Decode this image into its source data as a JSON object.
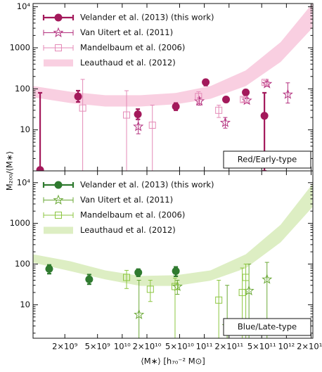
{
  "chart_data": [
    {
      "type": "scatter",
      "ylabel": "M₂₀₀/⟨M∗⟩",
      "panel_label": "Red/Early-type",
      "xlog": true,
      "ylog": true,
      "xlim": [
        820000000.0,
        2100000000000.0
      ],
      "ylim": [
        1,
        12000
      ],
      "xticks": [
        2000000000.0,
        5000000000.0,
        10000000000.0,
        20000000000.0,
        50000000000.0,
        100000000000.0,
        200000000000.0,
        500000000000.0,
        1000000000000.0,
        2000000000000.0
      ],
      "yticks": [
        10,
        100,
        1000,
        {
          "value": 10000,
          "label": "10⁴"
        }
      ],
      "series": [
        {
          "name": "Velander et al. (2013) (this work)",
          "marker": "circle",
          "color": "#a3195b",
          "x": [
            1000000000.0,
            2900000000.0,
            15500000000.0,
            45000000000.0,
            104000000000.0,
            184000000000.0,
            320000000000.0,
            540000000000.0
          ],
          "values": [
            1.05,
            65,
            24,
            37,
            145,
            55,
            82,
            22
          ],
          "lower": [
            1,
            48,
            18,
            30,
            120,
            47,
            70,
            1
          ],
          "upper": [
            80,
            90,
            32,
            45,
            165,
            63,
            95,
            80
          ]
        },
        {
          "name": "Van Uitert et al. (2011)",
          "marker": "star",
          "color": "#b3307e",
          "x": [
            15700000000.0,
            87000000000.0,
            180000000000.0,
            330000000000.0,
            580000000000.0,
            1040000000000.0
          ],
          "values": [
            12,
            50,
            15,
            52,
            132,
            73
          ],
          "lower": [
            8,
            40,
            11,
            45,
            115,
            45
          ],
          "upper": [
            18,
            60,
            20,
            60,
            150,
            140
          ]
        },
        {
          "name": "Mandelbaum et al. (2006)",
          "marker": "square",
          "color": "#e48ab7",
          "x": [
            3300000000.0,
            11300000000.0,
            23300000000.0,
            85000000000.0,
            150000000000.0,
            300000000000.0,
            550000000000.0
          ],
          "values": [
            34,
            23,
            13,
            65,
            30,
            55,
            143
          ],
          "lower": [
            1,
            1,
            1,
            45,
            20,
            48,
            125
          ],
          "upper": [
            170,
            90,
            40,
            85,
            40,
            62,
            160
          ]
        },
        {
          "name": "Leauthaud et al. (2012)",
          "marker": "band",
          "color": "#f9cfe1",
          "x": [
            820000000.0,
            2330000000.0,
            6200000000.0,
            16700000000.0,
            44600000000.0,
            119000000000.0,
            320000000000.0,
            850000000000.0,
            2070000000000.0
          ],
          "lower": [
            62,
            45,
            37,
            37,
            42,
            57,
            117,
            451,
            3030
          ],
          "upper": [
            117,
            85,
            70,
            70,
            79,
            117,
            281,
            1370,
            12000
          ]
        }
      ]
    },
    {
      "type": "scatter",
      "xlabel": "⟨M∗⟩ [h₇₀⁻² M⊙]",
      "panel_label": "Blue/Late-type",
      "xlog": true,
      "ylog": true,
      "xlim": [
        820000000.0,
        2100000000000.0
      ],
      "ylim": [
        1.5,
        19500
      ],
      "xticks": [
        {
          "value": 2000000000.0,
          "label": "2×10⁹"
        },
        {
          "value": 5000000000.0,
          "label": "5×10⁹"
        },
        {
          "value": 10000000000.0,
          "label": "10¹⁰"
        },
        {
          "value": 20000000000.0,
          "label": "2×10¹⁰"
        },
        {
          "value": 50000000000.0,
          "label": "5×10¹⁰"
        },
        {
          "value": 100000000000.0,
          "label": "10¹¹"
        },
        {
          "value": 200000000000.0,
          "label": "2×10¹¹"
        },
        {
          "value": 500000000000.0,
          "label": "5×10¹¹"
        },
        {
          "value": 1000000000000.0,
          "label": "10¹²"
        },
        {
          "value": 2000000000000.0,
          "label": "2×10¹²"
        }
      ],
      "yticks": [
        10,
        100,
        1000,
        {
          "value": 10000,
          "label": "10⁴"
        }
      ],
      "series": [
        {
          "name": "Velander et al. (2013) (this work)",
          "marker": "circle",
          "color": "#2f7a2f",
          "x": [
            1290000000.0,
            3960000000.0,
            15700000000.0,
            45000000000.0
          ],
          "values": [
            76,
            42,
            62,
            67
          ],
          "lower": [
            58,
            32,
            50,
            50
          ],
          "upper": [
            95,
            55,
            75,
            85
          ]
        },
        {
          "name": "Van Uitert et al. (2011)",
          "marker": "star",
          "color": "#6aa836",
          "x": [
            16000000000.0,
            47000000000.0,
            190000000000.0,
            350000000000.0,
            580000000000.0
          ],
          "values": [
            5.7,
            28,
            3.0,
            22,
            42
          ],
          "lower": [
            1.5,
            18,
            1.5,
            1.5,
            1.5
          ],
          "upper": [
            40,
            40,
            30,
            100,
            110
          ]
        },
        {
          "name": "Mandelbaum et al. (2006)",
          "marker": "square",
          "color": "#8cc640",
          "x": [
            11300000000.0,
            22000000000.0,
            44000000000.0,
            150000000000.0,
            290000000000.0,
            320000000000.0
          ],
          "values": [
            47,
            24,
            28,
            13,
            20,
            47
          ],
          "lower": [
            25,
            12,
            1.5,
            1.5,
            1.5,
            1.5
          ],
          "upper": [
            70,
            40,
            45,
            40,
            80,
            100
          ]
        },
        {
          "name": "Leauthaud et al. (2012)",
          "marker": "band",
          "color": "#ddeec3",
          "x": [
            820000000.0,
            2330000000.0,
            6200000000.0,
            16700000000.0,
            44600000000.0,
            119000000000.0,
            320000000000.0,
            850000000000.0,
            2070000000000.0
          ],
          "lower": [
            108,
            67,
            42,
            29,
            29,
            39,
            79,
            342,
            2490
          ],
          "upper": [
            174,
            117,
            70,
            51,
            53,
            70,
            174,
            922,
            9200
          ]
        }
      ]
    }
  ]
}
